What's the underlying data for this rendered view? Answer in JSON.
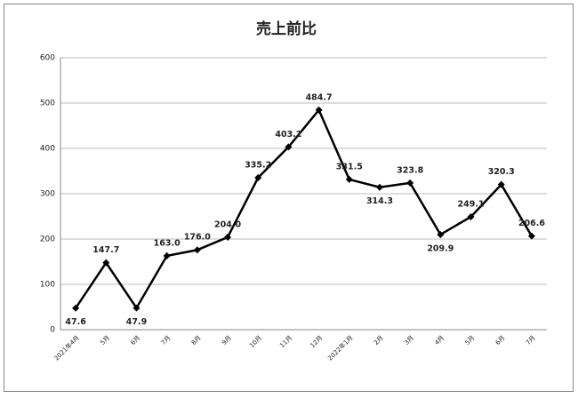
{
  "chart_data": {
    "type": "line",
    "title": "売上前比",
    "categories": [
      "2021年4月",
      "5月",
      "6月",
      "7月",
      "8月",
      "9月",
      "10月",
      "11月",
      "12月",
      "2022年1月",
      "2月",
      "3月",
      "4月",
      "5月",
      "6月",
      "7月"
    ],
    "values": [
      47.6,
      147.7,
      47.9,
      163.0,
      176.0,
      204.0,
      335.2,
      403.2,
      484.7,
      331.5,
      314.3,
      323.8,
      209.9,
      249.1,
      320.3,
      206.6
    ],
    "value_labels": [
      "47.6",
      "147.7",
      "47.9",
      "163.0",
      "176.0",
      "204.0",
      "335.2",
      "403.2",
      "484.7",
      "331.5",
      "314.3",
      "323.8",
      "209.9",
      "249.1",
      "320.3",
      "206.6"
    ],
    "color": "#000000",
    "ylim": [
      0,
      600
    ],
    "yticks": [
      0,
      100,
      200,
      300,
      400,
      500,
      600
    ],
    "grid": true
  }
}
